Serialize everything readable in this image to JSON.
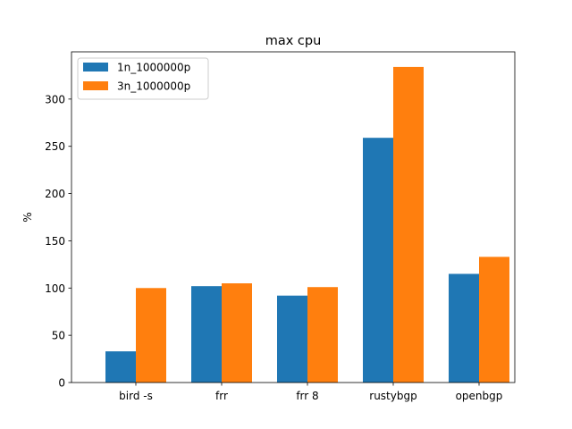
{
  "chart_data": {
    "type": "bar",
    "title": "max cpu",
    "xlabel": "",
    "ylabel": "%",
    "categories": [
      "bird -s",
      "frr",
      "frr 8",
      "rustybgp",
      "openbgp"
    ],
    "series": [
      {
        "name": "1n_1000000p",
        "color": "#1f77b4",
        "values": [
          33,
          102,
          92,
          259,
          115
        ]
      },
      {
        "name": "3n_1000000p",
        "color": "#ff7f0e",
        "values": [
          100,
          105,
          101,
          334,
          133
        ]
      }
    ],
    "ylim": [
      0,
      350
    ],
    "yticks": [
      0,
      50,
      100,
      150,
      200,
      250,
      300
    ],
    "grid": false,
    "legend_position": "upper-left"
  }
}
